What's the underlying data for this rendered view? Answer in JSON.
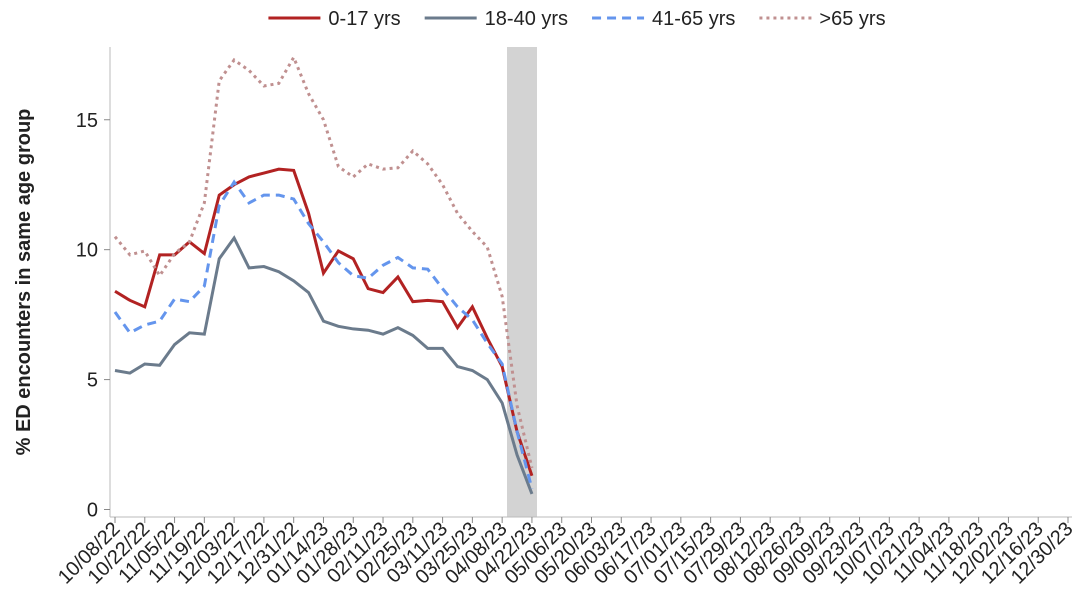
{
  "chart_data": {
    "type": "line",
    "y_label": "% ED encounters in same age group",
    "categories": [
      "10/08/22",
      null,
      "10/22/22",
      null,
      "11/05/22",
      null,
      "11/19/22",
      null,
      "12/03/22",
      null,
      "12/17/22",
      null,
      "12/31/22",
      null,
      "01/14/23",
      null,
      "01/28/23",
      null,
      "02/11/23",
      null,
      "02/25/23",
      null,
      "03/11/23",
      null,
      "03/25/23",
      null,
      "04/08/23",
      null,
      "04/22/23",
      null,
      "05/06/23",
      null,
      "05/20/23",
      null,
      "06/03/23",
      null,
      "06/17/23",
      null,
      "07/01/23",
      null,
      "07/15/23",
      null,
      "07/29/23",
      null,
      "08/12/23",
      null,
      "08/26/23",
      null,
      "09/09/23",
      null,
      "09/23/23",
      null,
      "10/07/23",
      null,
      "10/21/23",
      null,
      "11/04/23",
      null,
      "11/18/23",
      null,
      "12/02/23",
      null,
      "12/16/23",
      null,
      "12/30/23"
    ],
    "series": [
      {
        "name": "0-17 yrs",
        "color": "#b22222",
        "dash": "solid",
        "values": [
          8.4,
          8.05,
          7.8,
          9.8,
          9.8,
          10.3,
          9.85,
          12.1,
          12.5,
          12.8,
          12.95,
          13.1,
          13.05,
          11.4,
          9.1,
          9.95,
          9.65,
          8.5,
          8.35,
          8.95,
          8.0,
          8.05,
          8.0,
          7.0,
          7.8,
          6.6,
          5.5,
          3.0,
          1.3,
          null,
          null,
          null,
          null,
          null,
          null,
          null,
          null,
          null,
          null,
          null,
          null,
          null,
          null,
          null,
          null,
          null,
          null,
          null,
          null,
          null,
          null,
          null,
          null,
          null,
          null,
          null,
          null,
          null,
          null,
          null,
          null,
          null,
          null,
          null,
          null
        ]
      },
      {
        "name": "18-40 yrs",
        "color": "#6b7b8c",
        "dash": "solid",
        "values": [
          5.35,
          5.25,
          5.6,
          5.55,
          6.35,
          6.8,
          6.75,
          9.65,
          10.45,
          9.3,
          9.35,
          9.15,
          8.8,
          8.35,
          7.25,
          7.05,
          6.95,
          6.9,
          6.75,
          7.0,
          6.7,
          6.2,
          6.2,
          5.5,
          5.35,
          5.0,
          4.1,
          2.1,
          0.6,
          null,
          null,
          null,
          null,
          null,
          null,
          null,
          null,
          null,
          null,
          null,
          null,
          null,
          null,
          null,
          null,
          null,
          null,
          null,
          null,
          null,
          null,
          null,
          null,
          null,
          null,
          null,
          null,
          null,
          null,
          null,
          null,
          null,
          null,
          null,
          null
        ]
      },
      {
        "name": "41-65 yrs",
        "color": "#6495ed",
        "dash": "dashed",
        "values": [
          7.6,
          6.8,
          7.1,
          7.25,
          8.1,
          8.0,
          8.6,
          11.7,
          12.6,
          11.8,
          12.1,
          12.1,
          11.95,
          11.0,
          10.3,
          9.5,
          9.0,
          8.9,
          9.4,
          9.7,
          9.3,
          9.25,
          8.5,
          7.8,
          7.3,
          6.4,
          5.6,
          3.0,
          0.8,
          null,
          null,
          null,
          null,
          null,
          null,
          null,
          null,
          null,
          null,
          null,
          null,
          null,
          null,
          null,
          null,
          null,
          null,
          null,
          null,
          null,
          null,
          null,
          null,
          null,
          null,
          null,
          null,
          null,
          null,
          null,
          null,
          null,
          null,
          null,
          null
        ]
      },
      {
        "name": ">65 yrs",
        "color": "#c09090",
        "dash": "dotted",
        "values": [
          10.5,
          9.8,
          9.95,
          9.0,
          9.85,
          10.3,
          11.8,
          16.5,
          17.3,
          16.9,
          16.3,
          16.4,
          17.4,
          16.0,
          15.0,
          13.2,
          12.8,
          13.3,
          13.1,
          13.15,
          13.8,
          13.3,
          12.5,
          11.4,
          10.7,
          10.1,
          8.2,
          4.0,
          1.6,
          null,
          null,
          null,
          null,
          null,
          null,
          null,
          null,
          null,
          null,
          null,
          null,
          null,
          null,
          null,
          null,
          null,
          null,
          null,
          null,
          null,
          null,
          null,
          null,
          null,
          null,
          null,
          null,
          null,
          null,
          null,
          null,
          null,
          null,
          null,
          null
        ]
      }
    ],
    "ylim": [
      -0.25,
      17.8
    ],
    "yticks": [
      0,
      5,
      10,
      15
    ],
    "legend": "top"
  }
}
